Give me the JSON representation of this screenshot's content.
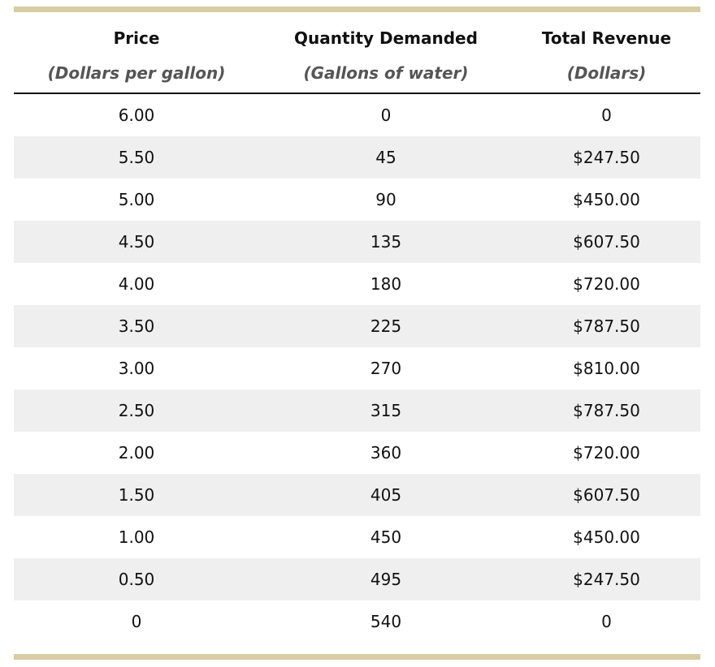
{
  "table": {
    "headers": [
      {
        "title": "Price",
        "subtitle": "(Dollars per gallon)"
      },
      {
        "title": "Quantity Demanded",
        "subtitle": "(Gallons of water)"
      },
      {
        "title": "Total Revenue",
        "subtitle": "(Dollars)"
      }
    ],
    "rows": [
      [
        "6.00",
        "0",
        "0"
      ],
      [
        "5.50",
        "45",
        "$247.50"
      ],
      [
        "5.00",
        "90",
        "$450.00"
      ],
      [
        "4.50",
        "135",
        "$607.50"
      ],
      [
        "4.00",
        "180",
        "$720.00"
      ],
      [
        "3.50",
        "225",
        "$787.50"
      ],
      [
        "3.00",
        "270",
        "$810.00"
      ],
      [
        "2.50",
        "315",
        "$787.50"
      ],
      [
        "2.00",
        "360",
        "$720.00"
      ],
      [
        "1.50",
        "405",
        "$607.50"
      ],
      [
        "1.00",
        "450",
        "$450.00"
      ],
      [
        "0.50",
        "495",
        "$247.50"
      ],
      [
        "0",
        "540",
        "0"
      ]
    ]
  }
}
